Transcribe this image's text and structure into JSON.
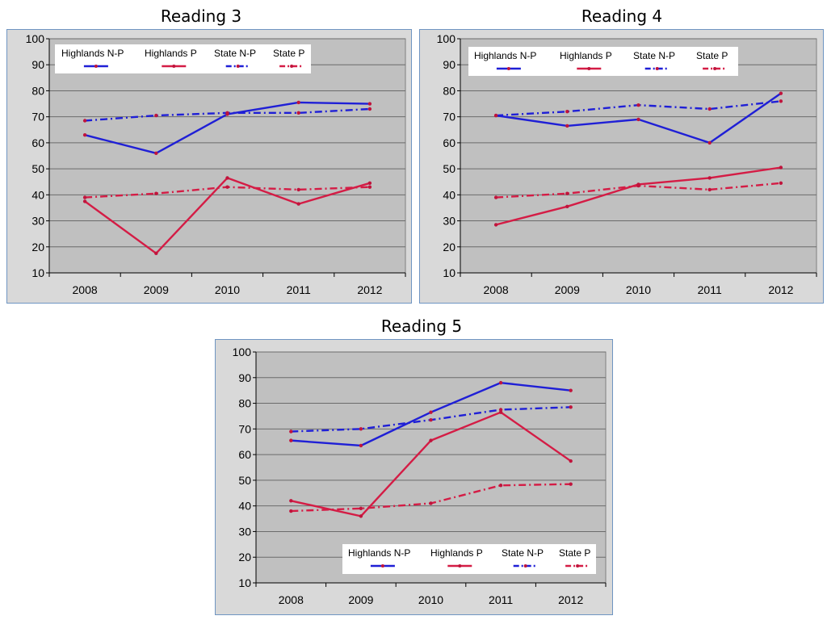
{
  "chart_data": [
    {
      "type": "line",
      "title": "Reading 3",
      "categories": [
        "2008",
        "2009",
        "2010",
        "2011",
        "2012"
      ],
      "ylim": [
        10,
        100
      ],
      "yticks": [
        10,
        20,
        30,
        40,
        50,
        60,
        70,
        80,
        90,
        100
      ],
      "grid": true,
      "legend_position": "top-left",
      "series": [
        {
          "name": "Highlands N-P",
          "values": [
            63,
            56,
            71,
            75.5,
            75
          ],
          "color": "#1f1fd6",
          "style": "solid"
        },
        {
          "name": "Highlands P",
          "values": [
            37.5,
            17.5,
            46.5,
            36.5,
            44.5
          ],
          "color": "#d41c45",
          "style": "solid"
        },
        {
          "name": "State N-P",
          "values": [
            68.5,
            70.5,
            71.5,
            71.5,
            73
          ],
          "color": "#1f1fd6",
          "style": "dashdot"
        },
        {
          "name": "State P",
          "values": [
            39,
            40.5,
            43,
            42,
            43
          ],
          "color": "#d41c45",
          "style": "dashdot"
        }
      ]
    },
    {
      "type": "line",
      "title": "Reading 4",
      "categories": [
        "2008",
        "2009",
        "2010",
        "2011",
        "2012"
      ],
      "ylim": [
        10,
        100
      ],
      "yticks": [
        10,
        20,
        30,
        40,
        50,
        60,
        70,
        80,
        90,
        100
      ],
      "grid": true,
      "legend_position": "top",
      "series": [
        {
          "name": "Highlands N-P",
          "values": [
            70.5,
            66.5,
            69,
            60,
            79
          ],
          "color": "#1f1fd6",
          "style": "solid"
        },
        {
          "name": "Highlands P",
          "values": [
            28.5,
            35.5,
            44,
            46.5,
            50.5
          ],
          "color": "#d41c45",
          "style": "solid"
        },
        {
          "name": "State N-P",
          "values": [
            70.5,
            72,
            74.5,
            73,
            76
          ],
          "color": "#1f1fd6",
          "style": "dashdot"
        },
        {
          "name": "State P",
          "values": [
            39,
            40.5,
            43.5,
            42,
            44.5
          ],
          "color": "#d41c45",
          "style": "dashdot"
        }
      ]
    },
    {
      "type": "line",
      "title": "Reading 5",
      "categories": [
        "2008",
        "2009",
        "2010",
        "2011",
        "2012"
      ],
      "ylim": [
        10,
        100
      ],
      "yticks": [
        10,
        20,
        30,
        40,
        50,
        60,
        70,
        80,
        90,
        100
      ],
      "grid": true,
      "legend_position": "bottom-right",
      "series": [
        {
          "name": "Highlands N-P",
          "values": [
            65.5,
            63.5,
            76.5,
            88,
            85
          ],
          "color": "#1f1fd6",
          "style": "solid"
        },
        {
          "name": "Highlands P",
          "values": [
            42,
            36,
            65.5,
            76.5,
            57.5
          ],
          "color": "#d41c45",
          "style": "solid"
        },
        {
          "name": "State N-P",
          "values": [
            69,
            70,
            73.5,
            77.5,
            78.5
          ],
          "color": "#1f1fd6",
          "style": "dashdot"
        },
        {
          "name": "State P",
          "values": [
            38,
            39,
            41,
            48,
            48.5
          ],
          "color": "#d41c45",
          "style": "dashdot"
        }
      ]
    }
  ]
}
